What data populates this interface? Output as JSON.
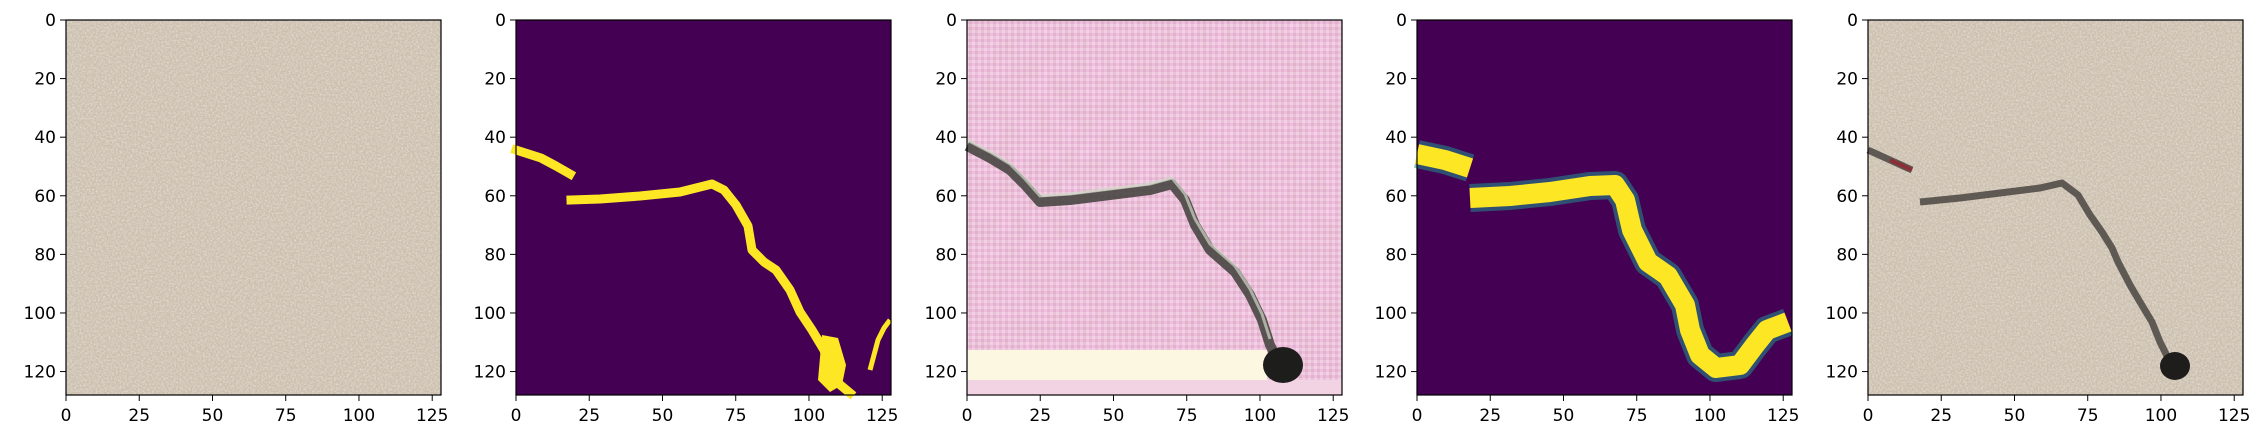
{
  "figure": {
    "panels": [
      {
        "kind": "photo",
        "content": "sand-texture"
      },
      {
        "kind": "mask",
        "content": "crack-mask-thin"
      },
      {
        "kind": "photo",
        "content": "generated-pink-crack"
      },
      {
        "kind": "mask",
        "content": "crack-mask-wide"
      },
      {
        "kind": "photo",
        "content": "sand-with-crack"
      }
    ],
    "x_ticks": [
      "0",
      "25",
      "50",
      "75",
      "100",
      "125"
    ],
    "y_ticks": [
      "0",
      "20",
      "40",
      "60",
      "80",
      "100",
      "120"
    ],
    "axis_range": [
      0,
      128
    ],
    "colors": {
      "mask_background": "#440154",
      "mask_foreground": "#fde725",
      "mask_edge": "#21918c",
      "sand": "#cbbfae",
      "pink": "#e9bfd6",
      "crack": "#3e3e3a"
    }
  }
}
